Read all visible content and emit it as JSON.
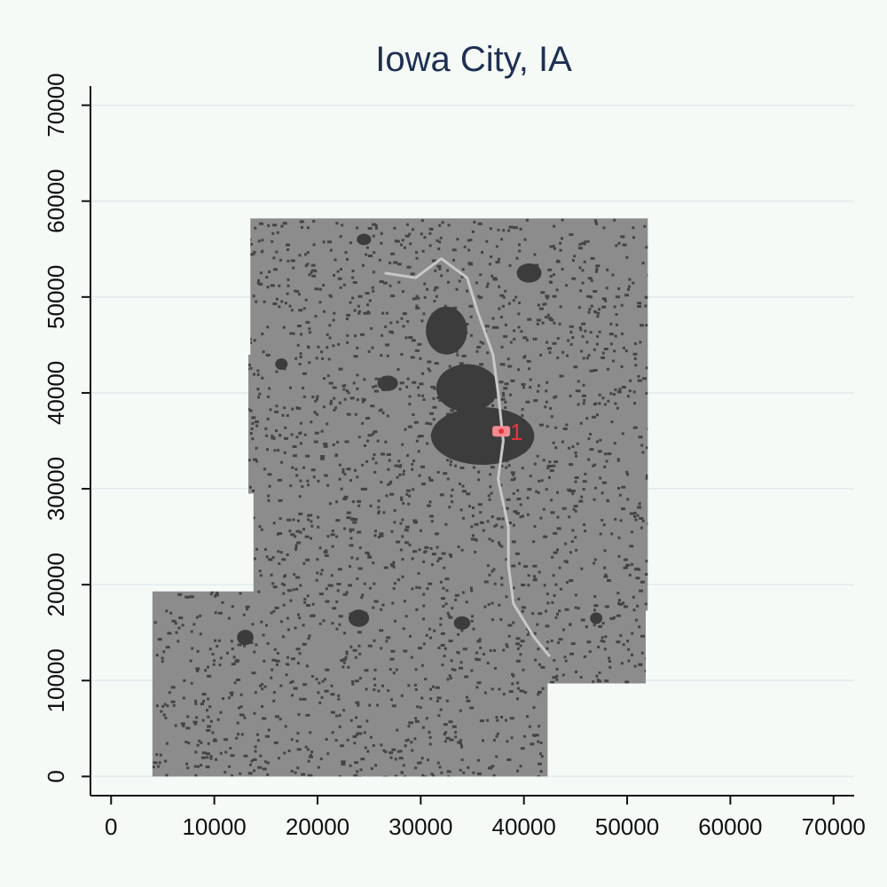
{
  "title": "Iowa City, IA",
  "chart_data": {
    "type": "map",
    "title": "Iowa City, IA",
    "xlabel": "",
    "ylabel": "",
    "xlim": [
      -2000,
      72000
    ],
    "ylim": [
      -2000,
      72000
    ],
    "x_ticks": [
      0,
      10000,
      20000,
      30000,
      40000,
      50000,
      60000,
      70000
    ],
    "y_ticks": [
      0,
      10000,
      20000,
      30000,
      40000,
      50000,
      60000,
      70000
    ],
    "gridlines": "horizontal",
    "region_outline": [
      [
        13500,
        58200
      ],
      [
        52000,
        58200
      ],
      [
        52000,
        17300
      ],
      [
        51800,
        17300
      ],
      [
        51800,
        9700
      ],
      [
        42300,
        9700
      ],
      [
        42300,
        0
      ],
      [
        4000,
        0
      ],
      [
        4000,
        19300
      ],
      [
        13800,
        19300
      ],
      [
        13800,
        29500
      ],
      [
        13300,
        29500
      ],
      [
        13300,
        44000
      ],
      [
        13500,
        44000
      ]
    ],
    "urban_clusters": [
      {
        "x": 36000,
        "y": 35500,
        "rx": 5000,
        "ry": 3000
      },
      {
        "x": 34500,
        "y": 40500,
        "rx": 3000,
        "ry": 2500
      },
      {
        "x": 32500,
        "y": 46500,
        "rx": 2000,
        "ry": 2500
      },
      {
        "x": 26800,
        "y": 41000,
        "rx": 1000,
        "ry": 800
      },
      {
        "x": 40500,
        "y": 52500,
        "rx": 1200,
        "ry": 1000
      },
      {
        "x": 24000,
        "y": 16500,
        "rx": 1000,
        "ry": 900
      },
      {
        "x": 13000,
        "y": 14500,
        "rx": 800,
        "ry": 800
      },
      {
        "x": 34000,
        "y": 16000,
        "rx": 800,
        "ry": 700
      },
      {
        "x": 47000,
        "y": 16500,
        "rx": 600,
        "ry": 600
      },
      {
        "x": 16500,
        "y": 43000,
        "rx": 600,
        "ry": 600
      },
      {
        "x": 24500,
        "y": 56000,
        "rx": 700,
        "ry": 600
      }
    ],
    "river_path": [
      [
        26500,
        52500
      ],
      [
        29500,
        52000
      ],
      [
        32000,
        54000
      ],
      [
        34500,
        52000
      ],
      [
        35500,
        48500
      ],
      [
        37000,
        44000
      ],
      [
        37500,
        40000
      ],
      [
        38000,
        35000
      ],
      [
        37500,
        31000
      ],
      [
        38500,
        26000
      ],
      [
        38500,
        22000
      ],
      [
        39000,
        18000
      ],
      [
        41000,
        14500
      ],
      [
        42500,
        12500
      ]
    ],
    "marker": {
      "x": 37800,
      "y": 36000,
      "label": "1",
      "color": "#e8323c"
    },
    "colors": {
      "background": "#f5faf7",
      "land": "#8c8c8c",
      "urban": "#3c3c3c",
      "river": "#c8c8c8",
      "gridline": "#e6eef0",
      "title": "#1e2f52"
    }
  }
}
